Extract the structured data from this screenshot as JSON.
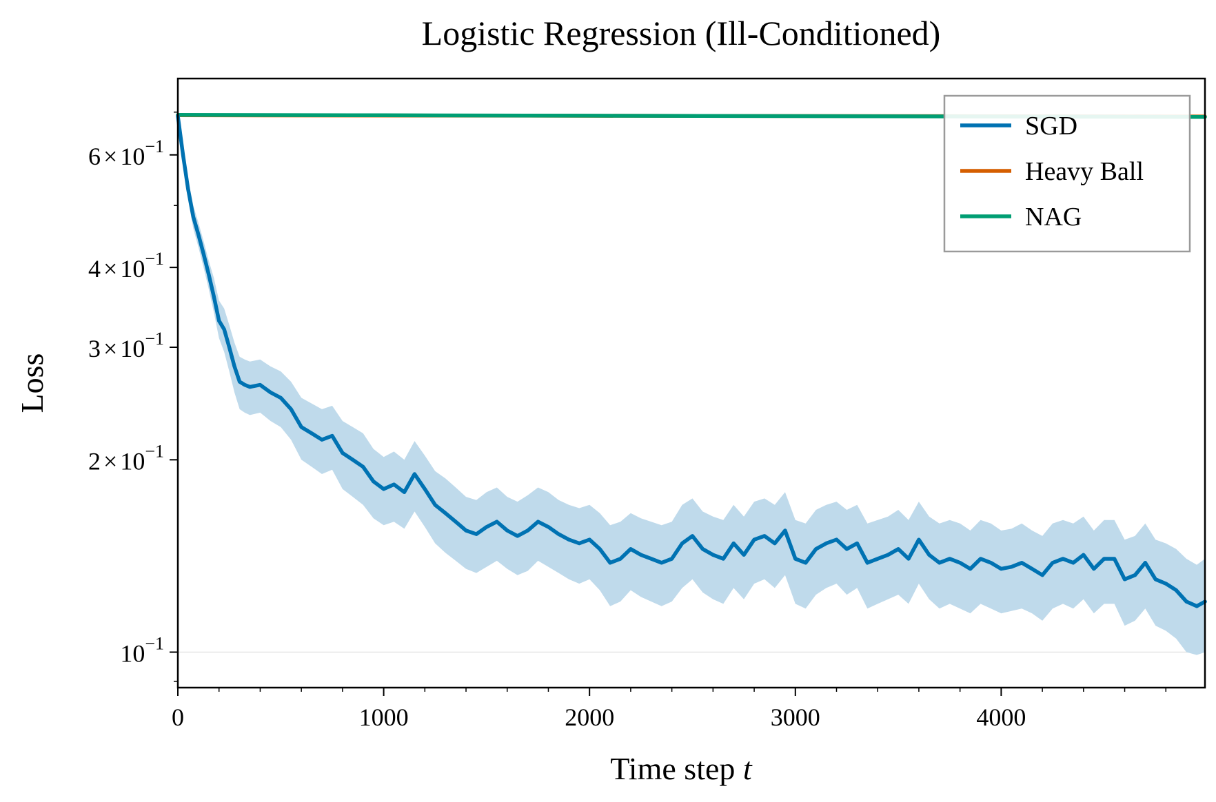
{
  "chart_data": {
    "type": "line",
    "title": "Logistic Regression (Ill-Conditioned)",
    "xlabel": "Time step",
    "xlabel_var": "t",
    "ylabel": "Loss",
    "y_scale": "log",
    "xlim": [
      0,
      4990
    ],
    "ylim": [
      0.088,
      0.79
    ],
    "x_ticks": [
      {
        "value": 0,
        "label": "0"
      },
      {
        "value": 1000,
        "label": "1000"
      },
      {
        "value": 2000,
        "label": "2000"
      },
      {
        "value": 3000,
        "label": "3000"
      },
      {
        "value": 4000,
        "label": "4000"
      }
    ],
    "y_ticks": [
      {
        "value": 0.6,
        "mant": "6",
        "times": "×",
        "base": "10",
        "exp": "−1"
      },
      {
        "value": 0.4,
        "mant": "4",
        "times": "×",
        "base": "10",
        "exp": "−1"
      },
      {
        "value": 0.3,
        "mant": "3",
        "times": "×",
        "base": "10",
        "exp": "−1"
      },
      {
        "value": 0.2,
        "mant": "2",
        "times": "×",
        "base": "10",
        "exp": "−1"
      },
      {
        "value": 0.1,
        "mant": "",
        "times": "",
        "base": "10",
        "exp": "−1"
      }
    ],
    "legend_position": "upper-right",
    "series": [
      {
        "name": "SGD",
        "color": "#0072b2",
        "band_color": "#bcd8ea",
        "x": [
          0,
          25,
          50,
          75,
          100,
          125,
          150,
          175,
          200,
          225,
          250,
          275,
          300,
          325,
          350,
          400,
          450,
          500,
          550,
          600,
          650,
          700,
          750,
          800,
          850,
          900,
          950,
          1000,
          1050,
          1100,
          1150,
          1200,
          1250,
          1300,
          1350,
          1400,
          1450,
          1500,
          1550,
          1600,
          1650,
          1700,
          1750,
          1800,
          1850,
          1900,
          1950,
          2000,
          2050,
          2100,
          2150,
          2200,
          2250,
          2300,
          2350,
          2400,
          2450,
          2500,
          2550,
          2600,
          2650,
          2700,
          2750,
          2800,
          2850,
          2900,
          2950,
          3000,
          3050,
          3100,
          3150,
          3200,
          3250,
          3300,
          3350,
          3400,
          3450,
          3500,
          3550,
          3600,
          3650,
          3700,
          3750,
          3800,
          3850,
          3900,
          3950,
          4000,
          4050,
          4100,
          4150,
          4200,
          4250,
          4300,
          4350,
          4400,
          4450,
          4500,
          4550,
          4600,
          4650,
          4700,
          4750,
          4800,
          4850,
          4900,
          4950,
          4990
        ],
        "values": [
          0.69,
          0.6,
          0.53,
          0.48,
          0.45,
          0.42,
          0.39,
          0.36,
          0.33,
          0.32,
          0.3,
          0.28,
          0.265,
          0.262,
          0.26,
          0.262,
          0.255,
          0.25,
          0.24,
          0.225,
          0.22,
          0.215,
          0.218,
          0.205,
          0.2,
          0.195,
          0.185,
          0.18,
          0.183,
          0.178,
          0.19,
          0.18,
          0.17,
          0.165,
          0.16,
          0.155,
          0.153,
          0.157,
          0.16,
          0.155,
          0.152,
          0.155,
          0.16,
          0.157,
          0.153,
          0.15,
          0.148,
          0.15,
          0.145,
          0.138,
          0.14,
          0.145,
          0.142,
          0.14,
          0.138,
          0.14,
          0.148,
          0.152,
          0.145,
          0.142,
          0.14,
          0.148,
          0.142,
          0.15,
          0.152,
          0.148,
          0.155,
          0.14,
          0.138,
          0.145,
          0.148,
          0.15,
          0.145,
          0.148,
          0.138,
          0.14,
          0.142,
          0.145,
          0.14,
          0.15,
          0.142,
          0.138,
          0.14,
          0.138,
          0.135,
          0.14,
          0.138,
          0.135,
          0.136,
          0.138,
          0.135,
          0.132,
          0.138,
          0.14,
          0.138,
          0.142,
          0.135,
          0.14,
          0.14,
          0.13,
          0.132,
          0.138,
          0.13,
          0.128,
          0.125,
          0.12,
          0.118,
          0.12
        ],
        "band_lower": [
          0.685,
          0.58,
          0.51,
          0.46,
          0.43,
          0.4,
          0.37,
          0.34,
          0.31,
          0.295,
          0.275,
          0.255,
          0.24,
          0.237,
          0.235,
          0.237,
          0.23,
          0.225,
          0.215,
          0.2,
          0.195,
          0.19,
          0.193,
          0.18,
          0.175,
          0.17,
          0.162,
          0.158,
          0.16,
          0.156,
          0.166,
          0.157,
          0.148,
          0.143,
          0.139,
          0.135,
          0.133,
          0.136,
          0.139,
          0.135,
          0.132,
          0.134,
          0.139,
          0.136,
          0.133,
          0.13,
          0.128,
          0.13,
          0.125,
          0.118,
          0.12,
          0.125,
          0.122,
          0.12,
          0.118,
          0.12,
          0.126,
          0.13,
          0.124,
          0.121,
          0.119,
          0.126,
          0.121,
          0.128,
          0.13,
          0.126,
          0.132,
          0.119,
          0.117,
          0.123,
          0.126,
          0.128,
          0.123,
          0.126,
          0.117,
          0.119,
          0.121,
          0.123,
          0.119,
          0.128,
          0.121,
          0.117,
          0.119,
          0.117,
          0.115,
          0.119,
          0.117,
          0.115,
          0.116,
          0.117,
          0.115,
          0.112,
          0.117,
          0.119,
          0.117,
          0.121,
          0.115,
          0.119,
          0.119,
          0.11,
          0.112,
          0.117,
          0.11,
          0.108,
          0.105,
          0.1,
          0.099,
          0.1
        ],
        "band_upper": [
          0.695,
          0.62,
          0.55,
          0.5,
          0.47,
          0.44,
          0.41,
          0.385,
          0.355,
          0.345,
          0.325,
          0.305,
          0.29,
          0.287,
          0.285,
          0.287,
          0.28,
          0.275,
          0.265,
          0.25,
          0.245,
          0.24,
          0.243,
          0.23,
          0.225,
          0.22,
          0.208,
          0.202,
          0.206,
          0.2,
          0.214,
          0.203,
          0.192,
          0.187,
          0.181,
          0.175,
          0.173,
          0.178,
          0.181,
          0.175,
          0.172,
          0.176,
          0.181,
          0.178,
          0.173,
          0.17,
          0.168,
          0.17,
          0.165,
          0.158,
          0.16,
          0.165,
          0.162,
          0.16,
          0.158,
          0.16,
          0.17,
          0.174,
          0.166,
          0.163,
          0.161,
          0.17,
          0.163,
          0.172,
          0.174,
          0.17,
          0.178,
          0.161,
          0.159,
          0.167,
          0.17,
          0.172,
          0.167,
          0.17,
          0.159,
          0.161,
          0.163,
          0.167,
          0.161,
          0.172,
          0.163,
          0.159,
          0.161,
          0.159,
          0.155,
          0.161,
          0.159,
          0.155,
          0.156,
          0.159,
          0.155,
          0.152,
          0.159,
          0.161,
          0.159,
          0.163,
          0.155,
          0.161,
          0.161,
          0.15,
          0.152,
          0.159,
          0.15,
          0.148,
          0.145,
          0.14,
          0.137,
          0.14
        ]
      },
      {
        "name": "Heavy Ball",
        "color": "#d55e00",
        "x": [
          0,
          4990
        ],
        "values": [
          0.692,
          0.689
        ]
      },
      {
        "name": "NAG",
        "color": "#009e73",
        "x": [
          0,
          1000,
          2000,
          3000,
          4000,
          4990
        ],
        "values": [
          0.693,
          0.692,
          0.691,
          0.69,
          0.689,
          0.688
        ]
      }
    ]
  }
}
